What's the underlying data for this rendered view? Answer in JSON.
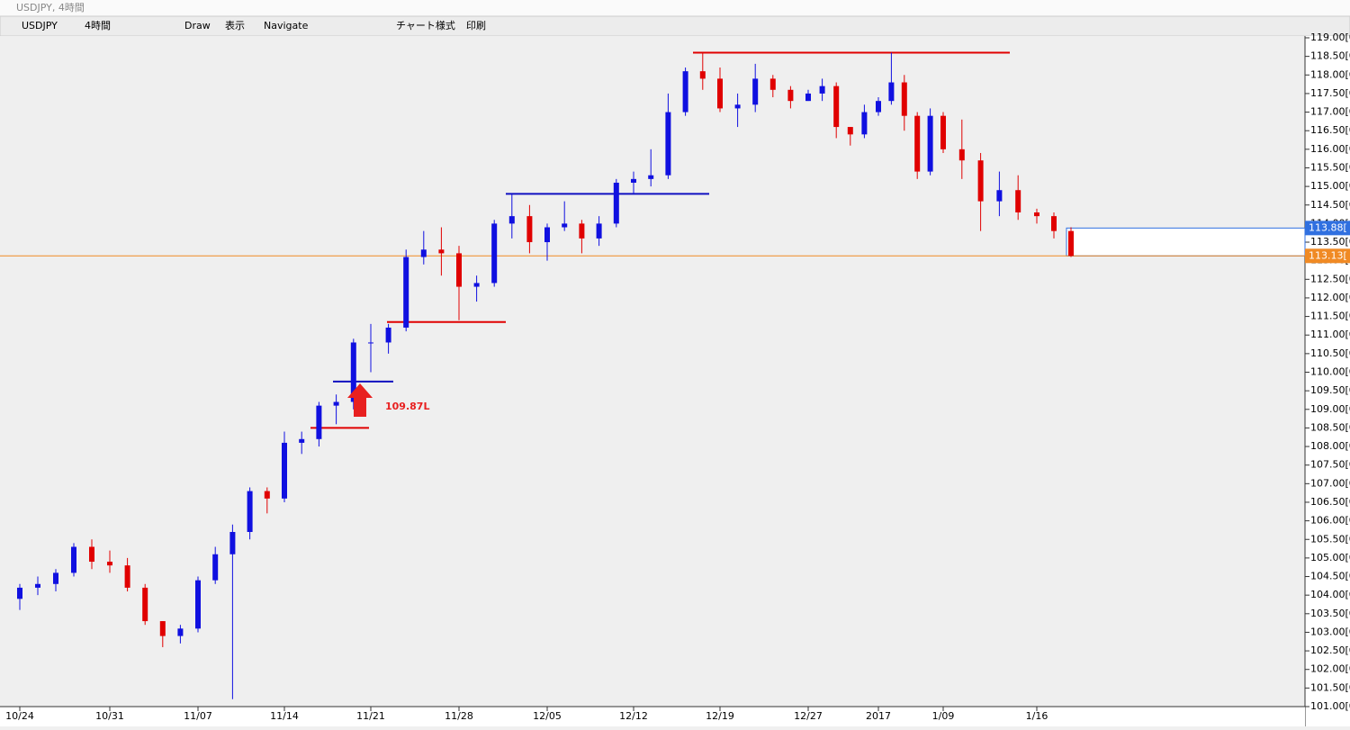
{
  "window": {
    "title": "USDJPY, 4時間",
    "toolbar": [
      "USDJPY",
      "4時間",
      "Draw",
      "表示",
      "Navigate",
      "チャート様式",
      "印刷"
    ]
  },
  "chart_data": {
    "type": "candlestick",
    "categories": [
      "10/24",
      null,
      null,
      null,
      null,
      "10/31",
      null,
      null,
      null,
      null,
      "11/07",
      null,
      null,
      null,
      null,
      "11/14",
      null,
      null,
      null,
      null,
      "11/21",
      null,
      null,
      null,
      null,
      "11/28",
      null,
      null,
      null,
      null,
      "12/05",
      null,
      null,
      null,
      null,
      "12/12",
      null,
      null,
      null,
      null,
      "12/19",
      null,
      null,
      null,
      null,
      "12/27",
      null,
      null,
      null,
      null,
      "2017",
      null,
      null,
      null,
      null,
      "1/09",
      null,
      null,
      null,
      null,
      "1/16",
      null,
      null
    ],
    "open": [
      103.9,
      104.2,
      104.3,
      104.6,
      105.3,
      104.9,
      104.8,
      104.2,
      103.3,
      102.9,
      103.1,
      104.4,
      105.1,
      105.7,
      106.8,
      106.6,
      108.1,
      108.2,
      109.1,
      109.2,
      110.8,
      110.8,
      111.2,
      113.1,
      113.3,
      113.2,
      112.3,
      112.4,
      114.0,
      114.2,
      113.5,
      113.9,
      114.0,
      113.6,
      114.0,
      115.1,
      115.2,
      115.3,
      117.0,
      118.1,
      117.9,
      117.1,
      117.2,
      117.9,
      117.6,
      117.3,
      117.5,
      117.7,
      116.6,
      116.4,
      117.0,
      117.3,
      117.8,
      116.9,
      115.4,
      116.9,
      116.0,
      115.7,
      114.6,
      114.9,
      114.3,
      114.2,
      113.8
    ],
    "high": [
      104.3,
      104.5,
      104.7,
      105.4,
      105.5,
      105.2,
      105.0,
      104.3,
      103.3,
      103.2,
      104.5,
      105.3,
      105.9,
      106.9,
      106.9,
      108.4,
      108.4,
      109.2,
      109.4,
      110.9,
      111.3,
      111.3,
      113.3,
      113.8,
      113.9,
      113.4,
      112.6,
      114.1,
      114.8,
      114.5,
      114.0,
      114.6,
      114.1,
      114.2,
      115.2,
      115.4,
      116.0,
      117.5,
      118.2,
      118.6,
      118.2,
      117.5,
      118.3,
      118.0,
      117.7,
      117.6,
      117.9,
      117.8,
      116.6,
      117.2,
      117.4,
      118.6,
      118.0,
      117.0,
      117.1,
      117.0,
      116.8,
      115.9,
      115.4,
      115.3,
      114.4,
      114.3,
      113.9
    ],
    "low": [
      103.6,
      104.0,
      104.1,
      104.5,
      104.7,
      104.6,
      104.1,
      103.2,
      102.6,
      102.7,
      103.0,
      104.3,
      101.2,
      105.5,
      106.2,
      106.5,
      107.8,
      108.0,
      108.6,
      109.0,
      110.0,
      110.5,
      111.1,
      112.9,
      112.6,
      111.4,
      111.9,
      112.3,
      113.6,
      113.2,
      113.0,
      113.8,
      113.2,
      113.4,
      113.9,
      114.8,
      115.0,
      115.2,
      116.9,
      117.6,
      117.0,
      116.6,
      117.0,
      117.4,
      117.1,
      117.3,
      117.3,
      116.3,
      116.1,
      116.3,
      116.9,
      117.2,
      116.5,
      115.2,
      115.3,
      115.9,
      115.2,
      113.8,
      114.2,
      114.1,
      114.0,
      113.6,
      113.1
    ],
    "close": [
      104.2,
      104.3,
      104.6,
      105.3,
      104.9,
      104.8,
      104.2,
      103.3,
      102.9,
      103.1,
      104.4,
      105.1,
      105.7,
      106.8,
      106.6,
      108.1,
      108.2,
      109.1,
      109.2,
      110.8,
      110.8,
      111.2,
      113.1,
      113.3,
      113.2,
      112.3,
      112.4,
      114.0,
      114.2,
      113.5,
      113.9,
      114.0,
      113.6,
      114.0,
      115.1,
      115.2,
      115.3,
      117.0,
      118.1,
      117.9,
      117.1,
      117.2,
      117.9,
      117.6,
      117.3,
      117.5,
      117.7,
      116.6,
      116.4,
      117.0,
      117.3,
      117.8,
      116.9,
      115.4,
      116.9,
      116.0,
      115.7,
      114.6,
      114.9,
      114.3,
      114.2,
      113.8,
      113.13
    ],
    "up_color": "#1010e0",
    "down_color": "#e00000",
    "ylim": [
      101,
      119
    ],
    "yticks": [
      {
        "value": 101,
        "label": "101.00[0"
      },
      {
        "value": 101.5,
        "label": "101.50[0"
      },
      {
        "value": 102,
        "label": "102.00[0"
      },
      {
        "value": 102.5,
        "label": "102.50[0"
      },
      {
        "value": 103,
        "label": "103.00[0"
      },
      {
        "value": 103.5,
        "label": "103.50[0"
      },
      {
        "value": 104,
        "label": "104.00[0"
      },
      {
        "value": 104.5,
        "label": "104.50[0"
      },
      {
        "value": 105,
        "label": "105.00[0"
      },
      {
        "value": 105.5,
        "label": "105.50[0"
      },
      {
        "value": 106,
        "label": "106.00[0"
      },
      {
        "value": 106.5,
        "label": "106.50[0"
      },
      {
        "value": 107,
        "label": "107.00[0"
      },
      {
        "value": 107.5,
        "label": "107.50[0"
      },
      {
        "value": 108,
        "label": "108.00[0"
      },
      {
        "value": 108.5,
        "label": "108.50[0"
      },
      {
        "value": 109,
        "label": "109.00[0"
      },
      {
        "value": 109.5,
        "label": "109.50[0"
      },
      {
        "value": 110,
        "label": "110.00[0"
      },
      {
        "value": 110.5,
        "label": "110.50[0"
      },
      {
        "value": 111,
        "label": "111.00[0"
      },
      {
        "value": 111.5,
        "label": "111.50[0"
      },
      {
        "value": 112,
        "label": "112.00[0"
      },
      {
        "value": 112.5,
        "label": "112.50[0"
      },
      {
        "value": 113,
        "label": "113.00[0"
      },
      {
        "value": 113.5,
        "label": "113.50[0"
      },
      {
        "value": 114,
        "label": "114.00[0"
      },
      {
        "value": 114.5,
        "label": "114.50[0"
      },
      {
        "value": 115,
        "label": "115.00[0"
      },
      {
        "value": 115.5,
        "label": "115.50[0"
      },
      {
        "value": 116,
        "label": "116.00[0"
      },
      {
        "value": 116.5,
        "label": "116.50[0"
      },
      {
        "value": 117,
        "label": "117.00[0"
      },
      {
        "value": 117.5,
        "label": "117.50[0"
      },
      {
        "value": 118,
        "label": "118.00[0"
      },
      {
        "value": 118.5,
        "label": "118.50[0"
      },
      {
        "value": 119,
        "label": "119.00[0"
      }
    ],
    "price_lines": [
      {
        "value": 113.88,
        "label": "113.88[",
        "color": "#3070e0"
      },
      {
        "value": 113.13,
        "label": "113.13[",
        "color": "#f08a24"
      }
    ],
    "levels": [
      {
        "value": 118.6,
        "color": "#e00000"
      },
      {
        "value": 114.8,
        "color": "#1010c0"
      },
      {
        "value": 111.35,
        "color": "#e00000"
      },
      {
        "value": 109.75,
        "color": "#1010c0"
      },
      {
        "value": 108.5,
        "color": "#e00000"
      }
    ],
    "annotation": "109.87L"
  }
}
